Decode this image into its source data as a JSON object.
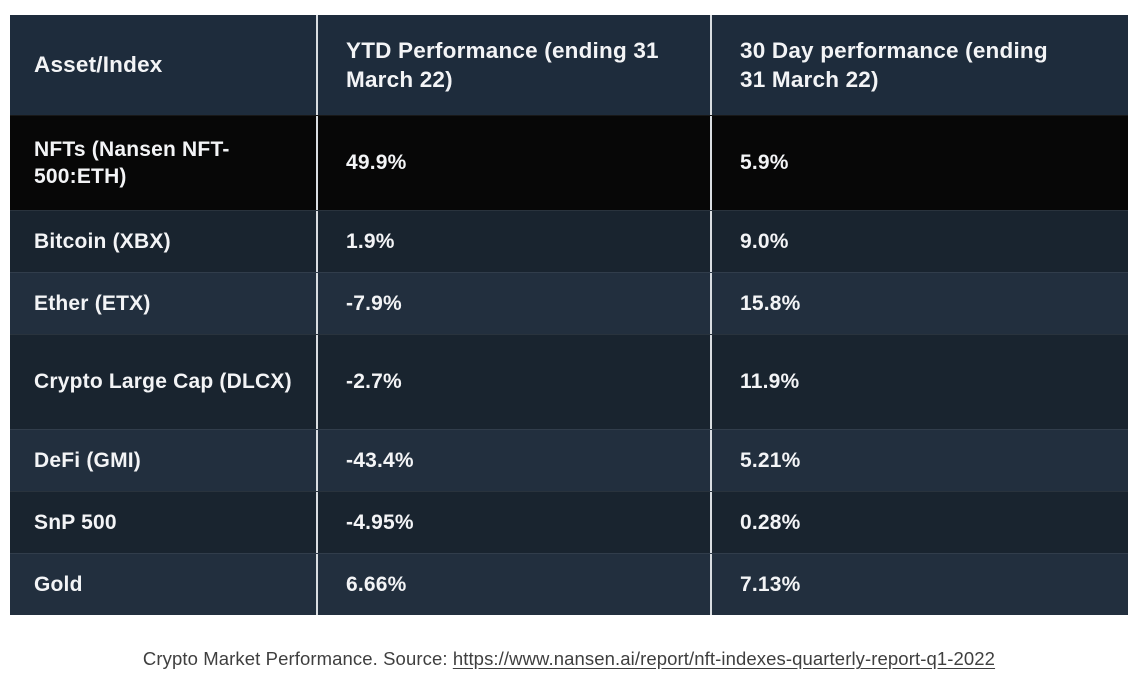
{
  "chart_data": {
    "type": "table",
    "title": "Crypto Market Performance",
    "columns": [
      "Asset/Index",
      "YTD Performance (ending 31 March 22)",
      "30 Day performance (ending 31 March 22)"
    ],
    "rows": [
      [
        "NFTs (Nansen NFT-500:ETH)",
        "49.9%",
        "5.9%"
      ],
      [
        "Bitcoin (XBX)",
        "1.9%",
        "9.0%"
      ],
      [
        "Ether (ETX)",
        "-7.9%",
        "15.8%"
      ],
      [
        "Crypto Large Cap (DLCX)",
        "-2.7%",
        "11.9%"
      ],
      [
        "DeFi (GMI)",
        "-43.4%",
        "5.21%"
      ],
      [
        "SnP 500",
        "-4.95%",
        "0.28%"
      ],
      [
        "Gold",
        "6.66%",
        "7.13%"
      ]
    ]
  },
  "caption": {
    "prefix": "Crypto Market Performance. Source: ",
    "link_text": "https://www.nansen.ai/report/nft-indexes-quarterly-report-q1-2022"
  },
  "colors": {
    "header_bg": "#1e2c3c",
    "row_black": "#070707",
    "row_a": "#19242f",
    "row_b": "#222f3e",
    "text": "#f3f4f6",
    "divider": "#d9dde1",
    "caption_text": "#3f3f3f"
  }
}
